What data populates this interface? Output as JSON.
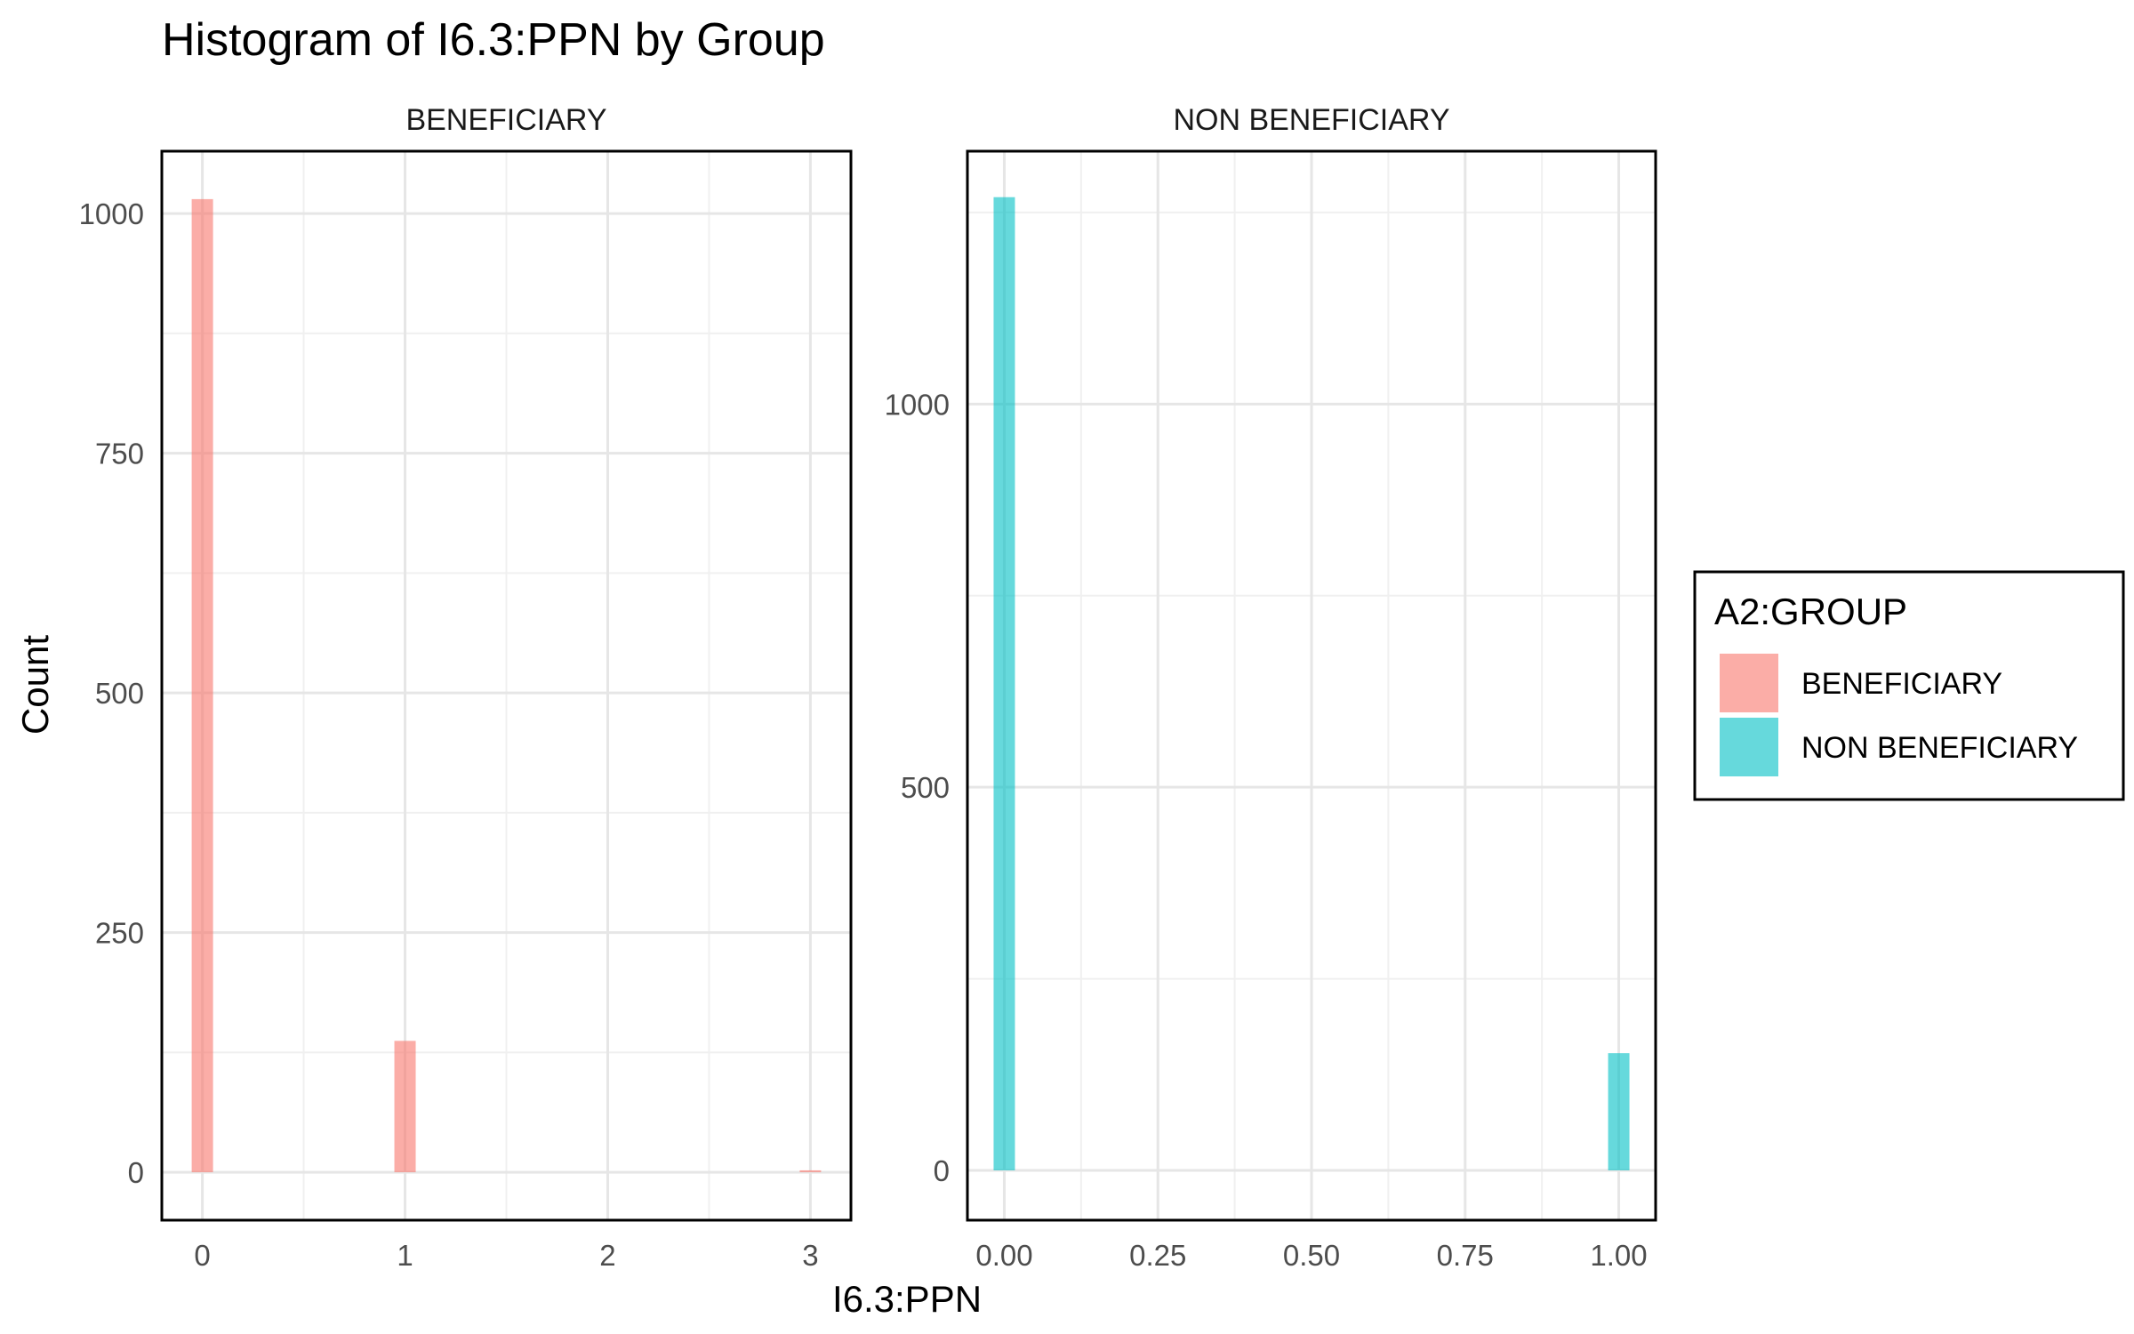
{
  "chart_data": {
    "type": "bar",
    "title": "Histogram of I6.3:PPN by Group",
    "xlabel": "I6.3:PPN",
    "ylabel": "Count",
    "grid": true,
    "legend": {
      "title": "A2:GROUP",
      "placement": "right",
      "entries": [
        {
          "label": "BENEFICIARY",
          "color": "#F8766D"
        },
        {
          "label": "NON BENEFICIARY",
          "color": "#00BFC4"
        }
      ]
    },
    "panels": [
      {
        "name": "BENEFICIARY",
        "color": "#F8766D",
        "xlim": [
          -0.2,
          3.2
        ],
        "ylim": [
          -50,
          1065
        ],
        "xticks": [
          0,
          1,
          2,
          3
        ],
        "xtick_labels": [
          "0",
          "1",
          "2",
          "3"
        ],
        "yticks": [
          0,
          250,
          500,
          750,
          1000
        ],
        "ytick_labels": [
          "0",
          "250",
          "500",
          "750",
          "1000"
        ],
        "bins": [
          {
            "x": 0,
            "count": 1015
          },
          {
            "x": 1,
            "count": 137
          },
          {
            "x": 3,
            "count": 2
          }
        ]
      },
      {
        "name": "NON BENEFICIARY",
        "color": "#00BFC4",
        "xlim": [
          -0.06,
          1.06
        ],
        "ylim": [
          -65,
          1330
        ],
        "xticks": [
          0,
          0.25,
          0.5,
          0.75,
          1
        ],
        "xtick_labels": [
          "0.00",
          "0.25",
          "0.50",
          "0.75",
          "1.00"
        ],
        "yticks": [
          0,
          500,
          1000
        ],
        "ytick_labels": [
          "0",
          "500",
          "1000"
        ],
        "bins": [
          {
            "x": 0,
            "count": 1270
          },
          {
            "x": 1,
            "count": 153
          }
        ]
      }
    ]
  }
}
